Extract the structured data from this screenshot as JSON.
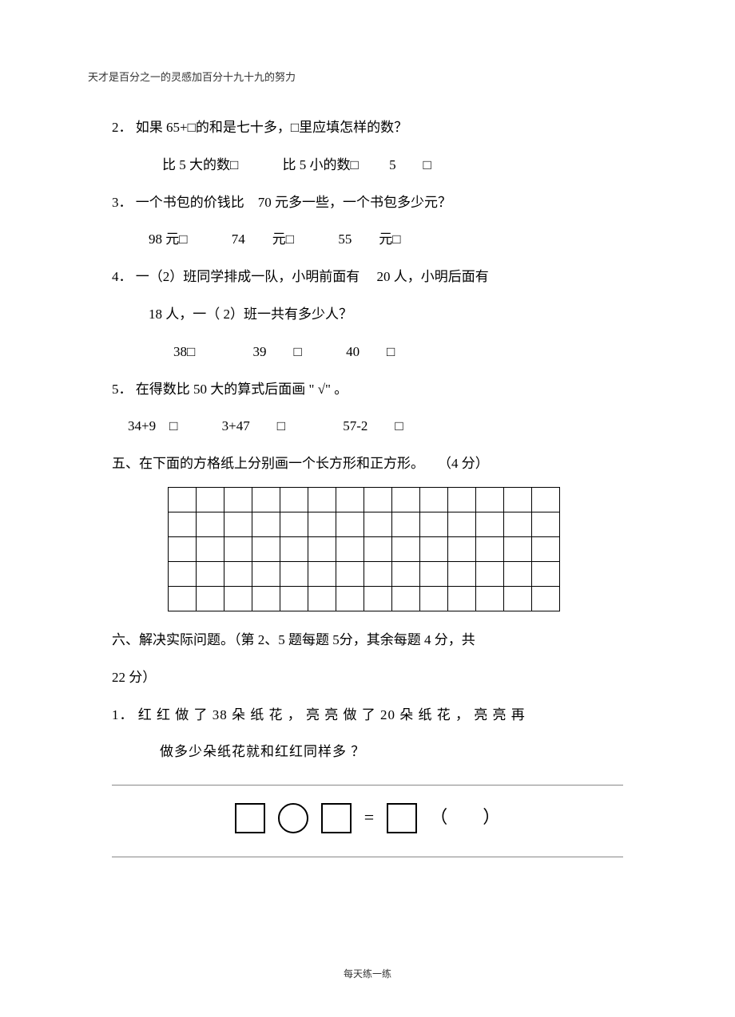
{
  "header": "天才是百分之一的灵感加百分十九十九的努力",
  "footer": "每天练一练",
  "q2": {
    "num": "2．",
    "text": "如果 65+□的和是七十多，□里应填怎样的数？",
    "opts": [
      "比 5 大的数□",
      "比 5 小的数□",
      "5　　□"
    ]
  },
  "q3": {
    "num": "3．",
    "text": "一个书包的价钱比　70 元多一些，一个书包多少元？",
    "opts": [
      "98 元□",
      "74　　元□",
      "55　　元□"
    ]
  },
  "q4": {
    "num": "4．",
    "text1": "一（2）班同学排成一队，小明前面有　 20 人，小明后面有",
    "text2": "18 人，一（ 2）班一共有多少人？",
    "opts": [
      "38□",
      "39　　□",
      "40　　□"
    ]
  },
  "q5": {
    "num": "5．",
    "text": "在得数比  50 大的算式后面画 \" √\" 。",
    "opts": [
      "34+9　□",
      "3+47　　□",
      "57-2　　□"
    ]
  },
  "s5": {
    "text": "五、在下面的方格纸上分别画一个长方形和正方形。　　（4 分）"
  },
  "s6": {
    "line1": "六、解决实际问题。（第 2、5 题每题 5分，其余每题  4 分，共",
    "line2": "22 分）"
  },
  "p1": {
    "num": "1．",
    "line1": "红 红 做 了 38 朵 纸 花 ， 亮 亮 做 了 20 朵 纸 花 ， 亮 亮 再",
    "line2": "做多少朵纸花就和红红同样多 ？"
  },
  "eq": {
    "equals": "=",
    "paren": "（　　）"
  },
  "grid": {
    "cols": 14,
    "rows": 5
  }
}
